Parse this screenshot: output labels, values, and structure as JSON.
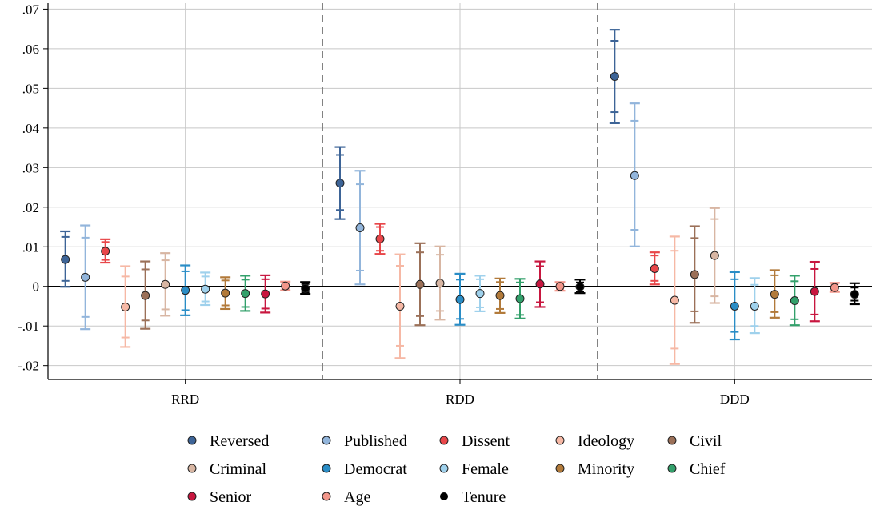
{
  "chart_data": {
    "type": "scatter",
    "subtype": "coefficient-plot-with-confidence-intervals",
    "title": "",
    "xlabel": "",
    "ylabel": "",
    "categories": [
      "RRD",
      "RDD",
      "DDD"
    ],
    "ylim": [
      -0.0235,
      0.0715
    ],
    "yticks": [
      {
        "v": -0.02,
        "label": "-.02"
      },
      {
        "v": -0.01,
        "label": "-.01"
      },
      {
        "v": 0,
        "label": "0"
      },
      {
        "v": 0.01,
        "label": ".01"
      },
      {
        "v": 0.02,
        "label": ".02"
      },
      {
        "v": 0.03,
        "label": ".03"
      },
      {
        "v": 0.04,
        "label": ".04"
      },
      {
        "v": 0.05,
        "label": ".05"
      },
      {
        "v": 0.06,
        "label": ".06"
      },
      {
        "v": 0.07,
        "label": ".07"
      }
    ],
    "grid": true,
    "zero_line": true,
    "group_separators": "dashed",
    "legend_position": "bottom",
    "series": [
      {
        "name": "Reversed",
        "color": "#3d6497",
        "points": [
          {
            "est": 0.0068,
            "ci90": [
              0.0014,
              0.0125
            ],
            "ci95": [
              -0.0001,
              0.0139
            ]
          },
          {
            "est": 0.0261,
            "ci90": [
              0.0193,
              0.0332
            ],
            "ci95": [
              0.017,
              0.0352
            ]
          },
          {
            "est": 0.053,
            "ci90": [
              0.044,
              0.062
            ],
            "ci95": [
              0.0412,
              0.0648
            ]
          }
        ]
      },
      {
        "name": "Published",
        "color": "#92b5db",
        "points": [
          {
            "est": 0.0023,
            "ci90": [
              -0.0077,
              0.0123
            ],
            "ci95": [
              -0.0108,
              0.0154
            ]
          },
          {
            "est": 0.0148,
            "ci90": [
              0.004,
              0.0258
            ],
            "ci95": [
              0.0005,
              0.0292
            ]
          },
          {
            "est": 0.028,
            "ci90": [
              0.0143,
              0.0418
            ],
            "ci95": [
              0.0101,
              0.0462
            ]
          }
        ]
      },
      {
        "name": "Dissent",
        "color": "#e8474a",
        "points": [
          {
            "est": 0.0089,
            "ci90": [
              0.0067,
              0.0112
            ],
            "ci95": [
              0.006,
              0.0119
            ]
          },
          {
            "est": 0.012,
            "ci90": [
              0.009,
              0.015
            ],
            "ci95": [
              0.0082,
              0.0158
            ]
          },
          {
            "est": 0.0045,
            "ci90": [
              0.0014,
              0.0078
            ],
            "ci95": [
              0.0005,
              0.0086
            ]
          }
        ]
      },
      {
        "name": "Ideology",
        "color": "#f6b8a5",
        "points": [
          {
            "est": -0.0052,
            "ci90": [
              -0.0129,
              0.0025
            ],
            "ci95": [
              -0.0153,
              0.0051
            ]
          },
          {
            "est": -0.005,
            "ci90": [
              -0.015,
              0.0052
            ],
            "ci95": [
              -0.0181,
              0.0081
            ]
          },
          {
            "est": -0.0035,
            "ci90": [
              -0.0157,
              0.009
            ],
            "ci95": [
              -0.0196,
              0.0126
            ]
          }
        ]
      },
      {
        "name": "Civil",
        "color": "#9b7058",
        "points": [
          {
            "est": -0.0023,
            "ci90": [
              -0.0086,
              0.0043
            ],
            "ci95": [
              -0.0107,
              0.0063
            ]
          },
          {
            "est": 0.0005,
            "ci90": [
              -0.0075,
              0.0086
            ],
            "ci95": [
              -0.0098,
              0.0109
            ]
          },
          {
            "est": 0.003,
            "ci90": [
              -0.0063,
              0.0122
            ],
            "ci95": [
              -0.0092,
              0.0152
            ]
          }
        ]
      },
      {
        "name": "Criminal",
        "color": "#d8b6a3",
        "points": [
          {
            "est": 0.0005,
            "ci90": [
              -0.0058,
              0.0066
            ],
            "ci95": [
              -0.0074,
              0.0084
            ]
          },
          {
            "est": 0.0008,
            "ci90": [
              -0.0062,
              0.008
            ],
            "ci95": [
              -0.0084,
              0.0101
            ]
          },
          {
            "est": 0.0078,
            "ci90": [
              -0.0025,
              0.017
            ],
            "ci95": [
              -0.0042,
              0.0198
            ]
          }
        ]
      },
      {
        "name": "Democrat",
        "color": "#2a8dc6",
        "points": [
          {
            "est": -0.001,
            "ci90": [
              -0.006,
              0.0038
            ],
            "ci95": [
              -0.0073,
              0.0053
            ]
          },
          {
            "est": -0.0033,
            "ci90": [
              -0.0082,
              0.0017
            ],
            "ci95": [
              -0.0097,
              0.0032
            ]
          },
          {
            "est": -0.005,
            "ci90": [
              -0.0115,
              0.0018
            ],
            "ci95": [
              -0.0134,
              0.0036
            ]
          }
        ]
      },
      {
        "name": "Female",
        "color": "#9fd1ec",
        "points": [
          {
            "est": -0.0007,
            "ci90": [
              -0.0038,
              0.0025
            ],
            "ci95": [
              -0.0047,
              0.0035
            ]
          },
          {
            "est": -0.0018,
            "ci90": [
              -0.0053,
              0.0018
            ],
            "ci95": [
              -0.0063,
              0.0027
            ]
          },
          {
            "est": -0.005,
            "ci90": [
              -0.01,
              0.0004
            ],
            "ci95": [
              -0.0118,
              0.0021
            ]
          }
        ]
      },
      {
        "name": "Minority",
        "color": "#b27a3a",
        "points": [
          {
            "est": -0.0017,
            "ci90": [
              -0.0048,
              0.0015
            ],
            "ci95": [
              -0.0057,
              0.0023
            ]
          },
          {
            "est": -0.0023,
            "ci90": [
              -0.0057,
              0.0011
            ],
            "ci95": [
              -0.0067,
              0.002
            ]
          },
          {
            "est": -0.002,
            "ci90": [
              -0.0065,
              0.0028
            ],
            "ci95": [
              -0.0079,
              0.0041
            ]
          }
        ]
      },
      {
        "name": "Chief",
        "color": "#33a06b",
        "points": [
          {
            "est": -0.0018,
            "ci90": [
              -0.0052,
              0.0017
            ],
            "ci95": [
              -0.0062,
              0.0027
            ]
          },
          {
            "est": -0.0031,
            "ci90": [
              -0.0072,
              0.001
            ],
            "ci95": [
              -0.0081,
              0.0019
            ]
          },
          {
            "est": -0.0036,
            "ci90": [
              -0.0083,
              0.0013
            ],
            "ci95": [
              -0.0098,
              0.0027
            ]
          }
        ]
      },
      {
        "name": "Senior",
        "color": "#c8163f",
        "points": [
          {
            "est": -0.0019,
            "ci90": [
              -0.0056,
              0.0018
            ],
            "ci95": [
              -0.0066,
              0.0028
            ]
          },
          {
            "est": 0.0006,
            "ci90": [
              -0.004,
              0.0051
            ],
            "ci95": [
              -0.0052,
              0.0063
            ]
          },
          {
            "est": -0.0013,
            "ci90": [
              -0.0071,
              0.0044
            ],
            "ci95": [
              -0.0088,
              0.0062
            ]
          }
        ]
      },
      {
        "name": "Age",
        "color": "#f2968a",
        "points": [
          {
            "est": 0.0001,
            "ci90": [
              -0.0007,
              0.0009
            ],
            "ci95": [
              -0.001,
              0.0012
            ]
          },
          {
            "est": 0.0,
            "ci90": [
              -0.0008,
              0.0008
            ],
            "ci95": [
              -0.0011,
              0.0011
            ]
          },
          {
            "est": -0.0003,
            "ci90": [
              -0.0011,
              0.0006
            ],
            "ci95": [
              -0.0014,
              0.0009
            ]
          }
        ]
      },
      {
        "name": "Tenure",
        "color": "#000000",
        "points": [
          {
            "est": -0.0005,
            "ci90": [
              -0.0015,
              0.0006
            ],
            "ci95": [
              -0.0019,
              0.0011
            ]
          },
          {
            "est": -0.0001,
            "ci90": [
              -0.0013,
              0.001
            ],
            "ci95": [
              -0.0017,
              0.0017
            ]
          },
          {
            "est": -0.002,
            "ci90": [
              -0.0036,
              -0.0003
            ],
            "ci95": [
              -0.0045,
              0.0008
            ]
          }
        ]
      }
    ]
  }
}
